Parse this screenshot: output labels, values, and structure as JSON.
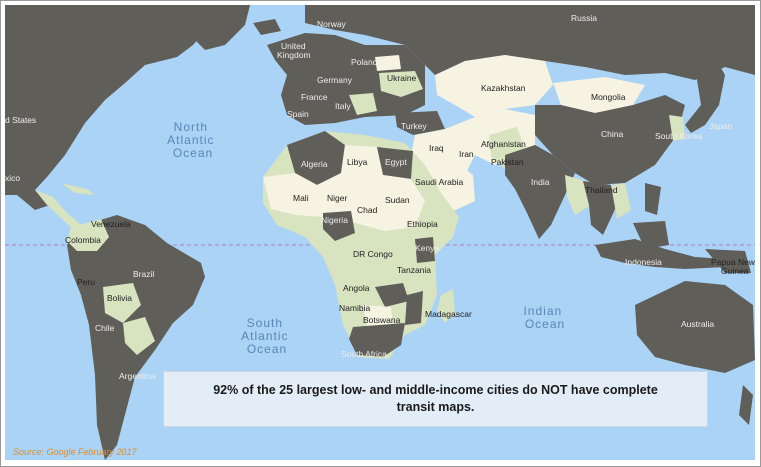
{
  "oceans": [
    {
      "name": "north-atlantic",
      "lines": [
        "North",
        "Atlantic",
        "Ocean"
      ]
    },
    {
      "name": "south-atlantic",
      "lines": [
        "South",
        "Atlantic",
        "Ocean"
      ]
    },
    {
      "name": "indian",
      "lines": [
        "Indian",
        "Ocean"
      ]
    }
  ],
  "countries": [
    {
      "label": "Russia"
    },
    {
      "label": "Norway"
    },
    {
      "label": "United"
    },
    {
      "label": "Kingdom"
    },
    {
      "label": "Poland"
    },
    {
      "label": "Ukraine"
    },
    {
      "label": "Germany"
    },
    {
      "label": "France"
    },
    {
      "label": "Spain"
    },
    {
      "label": "Italy"
    },
    {
      "label": "Turkey"
    },
    {
      "label": "Kazakhstan"
    },
    {
      "label": "Mongolia"
    },
    {
      "label": "China"
    },
    {
      "label": "Japan"
    },
    {
      "label": "South Korea"
    },
    {
      "label": "Afghanistan"
    },
    {
      "label": "Iraq"
    },
    {
      "label": "Iran"
    },
    {
      "label": "Pakistan"
    },
    {
      "label": "India"
    },
    {
      "label": "Thailand"
    },
    {
      "label": "Indonesia"
    },
    {
      "label": "Papua New"
    },
    {
      "label": "Guinea"
    },
    {
      "label": "Australia"
    },
    {
      "label": "Saudi Arabia"
    },
    {
      "label": "Egypt"
    },
    {
      "label": "Libya"
    },
    {
      "label": "Algeria"
    },
    {
      "label": "Mali"
    },
    {
      "label": "Niger"
    },
    {
      "label": "Chad"
    },
    {
      "label": "Sudan"
    },
    {
      "label": "Nigeria"
    },
    {
      "label": "Ethiopia"
    },
    {
      "label": "Kenya"
    },
    {
      "label": "DR Congo"
    },
    {
      "label": "Tanzania"
    },
    {
      "label": "Angola"
    },
    {
      "label": "Namibia"
    },
    {
      "label": "Botswana"
    },
    {
      "label": "Madagascar"
    },
    {
      "label": "South Africa"
    },
    {
      "label": "Venezuela"
    },
    {
      "label": "Colombia"
    },
    {
      "label": "Peru"
    },
    {
      "label": "Brazil"
    },
    {
      "label": "Bolivia"
    },
    {
      "label": "Chile"
    },
    {
      "label": "Argentina"
    },
    {
      "label": "d States"
    },
    {
      "label": "xico"
    }
  ],
  "callout": "92% of the 25 largest low- and middle-income cities do NOT have complete transit maps.",
  "source": "Source: Google February 2017",
  "colors": {
    "ocean": "#aad3f5",
    "no_transit_map": "#5f5e59",
    "has_transit_map": "#f6f3e2",
    "partial_transit_map": "#d8e3c0",
    "equator": "#b07cc6",
    "source_text": "#e28b2c"
  }
}
